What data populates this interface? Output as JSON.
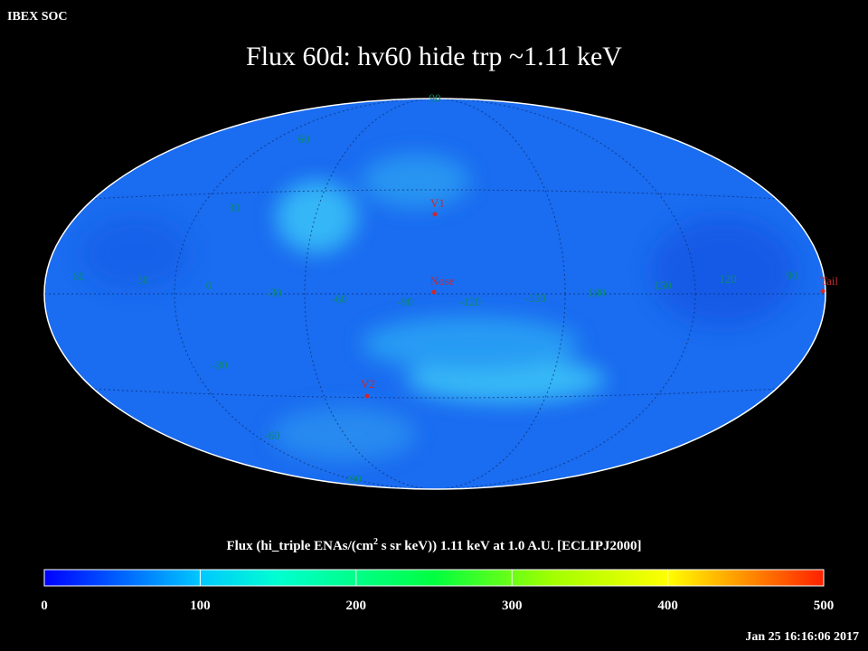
{
  "header": {
    "org": "IBEX SOC",
    "title": "Flux   60d: hv60 hide trp ~1.11 keV"
  },
  "map": {
    "longitude_labels": [
      "60",
      "30",
      "0",
      "-30",
      "-60",
      "-90",
      "-120",
      "-150",
      "180",
      "150",
      "120",
      "90"
    ],
    "latitude_labels": [
      "90",
      "60",
      "30",
      "-30",
      "-60",
      "-90"
    ],
    "markers": [
      "V1",
      "Nose",
      "V2",
      "Tail"
    ]
  },
  "colorbar": {
    "caption": {
      "before": "Flux (hi_triple ENAs/(cm",
      "sup": "2",
      "after": " s sr keV))  1.11 keV at 1.0 A.U. [ECLIPJ2000]"
    },
    "range": [
      0,
      500
    ],
    "ticks": [
      0,
      100,
      200,
      300,
      400,
      500
    ]
  },
  "footer": {
    "timestamp": "Jan 25 16:16:06 2017"
  }
}
